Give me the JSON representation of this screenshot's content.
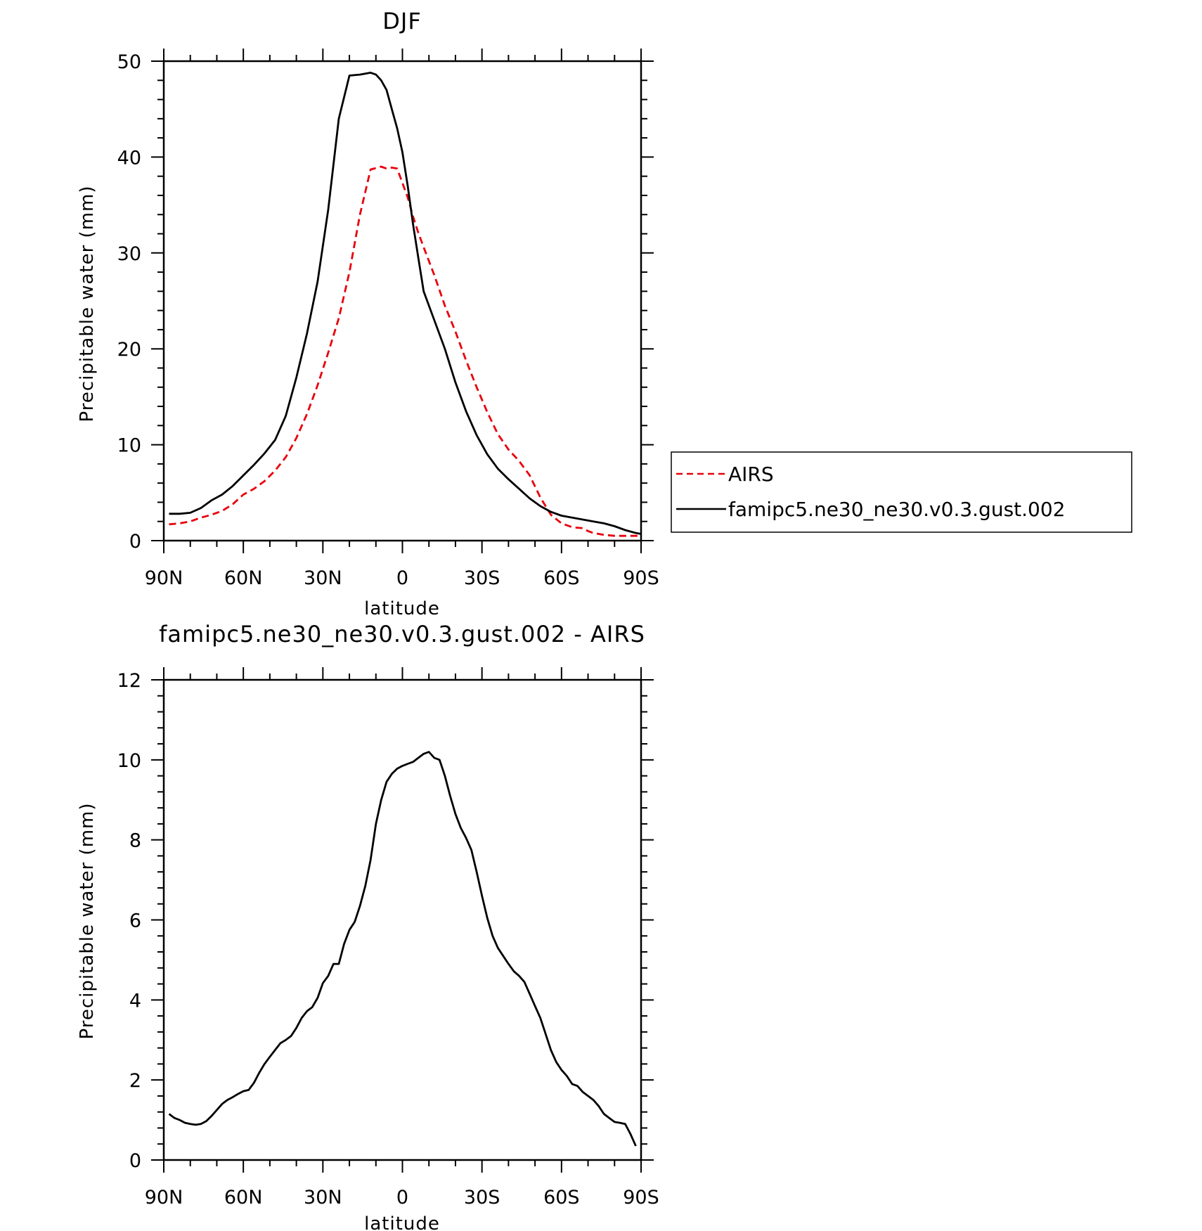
{
  "chart_data": [
    {
      "type": "line",
      "title": "DJF",
      "xlabel": "latitude",
      "ylabel": "Precipitable water (mm)",
      "xlim": [
        90,
        -90
      ],
      "ylim": [
        0,
        50
      ],
      "y_major_ticks": [
        0,
        10,
        20,
        30,
        40,
        50
      ],
      "x_ticks": [
        90,
        60,
        30,
        0,
        -30,
        -60,
        -90
      ],
      "x_tick_labels": [
        "90N",
        "60N",
        "30N",
        "0",
        "30S",
        "60S",
        "90S"
      ],
      "grid": false,
      "legend": {
        "position": "right",
        "entries": [
          "AIRS",
          "famipc5.ne30_ne30.v0.3.gust.002"
        ]
      },
      "series": [
        {
          "name": "AIRS",
          "color": "#e8000b",
          "style": "dashed",
          "x": [
            88,
            84,
            80,
            76,
            72,
            68,
            64,
            60,
            56,
            52,
            48,
            44,
            40,
            36,
            32,
            28,
            24,
            20,
            16,
            12,
            8,
            6,
            4,
            2,
            0,
            -2,
            -4,
            -6,
            -8,
            -12,
            -16,
            -20,
            -24,
            -28,
            -32,
            -36,
            -40,
            -44,
            -48,
            -52,
            -56,
            -60,
            -64,
            -68,
            -70,
            -72,
            -76,
            -80,
            -84,
            -88,
            -90
          ],
          "y": [
            1.7,
            1.8,
            2.0,
            2.4,
            2.7,
            3.1,
            3.8,
            4.8,
            5.4,
            6.2,
            7.3,
            8.7,
            10.7,
            13.2,
            16.2,
            19.6,
            23.2,
            28.0,
            34.0,
            38.7,
            39.0,
            38.8,
            38.9,
            38.8,
            37.3,
            35.8,
            33.8,
            32.1,
            30.6,
            27.7,
            24.5,
            21.8,
            18.8,
            16.0,
            13.4,
            11.1,
            9.5,
            8.3,
            6.8,
            4.5,
            2.7,
            1.8,
            1.4,
            1.3,
            1.0,
            0.8,
            0.6,
            0.5,
            0.5,
            0.5,
            0.5
          ]
        },
        {
          "name": "famipc5.ne30_ne30.v0.3.gust.002",
          "color": "#000000",
          "style": "solid",
          "x": [
            88,
            84,
            80,
            76,
            72,
            68,
            64,
            60,
            56,
            52,
            48,
            44,
            40,
            36,
            32,
            28,
            24,
            20,
            16,
            12,
            10,
            8,
            6,
            4,
            2,
            0,
            -2,
            -4,
            -6,
            -8,
            -12,
            -16,
            -20,
            -24,
            -28,
            -32,
            -36,
            -40,
            -44,
            -48,
            -52,
            -56,
            -60,
            -64,
            -68,
            -72,
            -76,
            -80,
            -84,
            -88,
            -90
          ],
          "y": [
            2.8,
            2.8,
            2.9,
            3.4,
            4.2,
            4.8,
            5.7,
            6.8,
            7.9,
            9.1,
            10.5,
            13.0,
            17.0,
            21.6,
            27.0,
            34.5,
            44.0,
            48.5,
            48.6,
            48.8,
            48.6,
            48.0,
            47.0,
            45.0,
            43.0,
            40.5,
            37.0,
            33.0,
            29.5,
            26.0,
            23.0,
            20.0,
            16.5,
            13.5,
            11.0,
            9.0,
            7.5,
            6.4,
            5.4,
            4.4,
            3.6,
            3.0,
            2.6,
            2.4,
            2.2,
            2.0,
            1.8,
            1.5,
            1.1,
            0.8,
            0.7
          ]
        }
      ]
    },
    {
      "type": "line",
      "title": "famipc5.ne30_ne30.v0.3.gust.002 - AIRS",
      "xlabel": "latitude",
      "ylabel": "Precipitable water (mm)",
      "xlim": [
        90,
        -90
      ],
      "ylim": [
        0,
        12
      ],
      "y_major_ticks": [
        0,
        2,
        4,
        6,
        8,
        10,
        12
      ],
      "x_ticks": [
        90,
        60,
        30,
        0,
        -30,
        -60,
        -90
      ],
      "x_tick_labels": [
        "90N",
        "60N",
        "30N",
        "0",
        "30S",
        "60S",
        "90S"
      ],
      "grid": false,
      "series": [
        {
          "color": "#000000",
          "style": "solid",
          "x": [
            88,
            86,
            84,
            82,
            80,
            78,
            76,
            74,
            72,
            70,
            68,
            66,
            64,
            62,
            60,
            58,
            56,
            54,
            52,
            50,
            48,
            46,
            44,
            42,
            40,
            38,
            36,
            34,
            32,
            30,
            28,
            26,
            24,
            22,
            20,
            18,
            16,
            14,
            12,
            10,
            8,
            6,
            4,
            2,
            0,
            -2,
            -4,
            -6,
            -8,
            -10,
            -12,
            -14,
            -16,
            -18,
            -20,
            -22,
            -24,
            -26,
            -28,
            -30,
            -32,
            -34,
            -36,
            -38,
            -40,
            -42,
            -44,
            -46,
            -48,
            -50,
            -52,
            -54,
            -56,
            -58,
            -60,
            -62,
            -64,
            -66,
            -68,
            -70,
            -72,
            -74,
            -76,
            -78,
            -80,
            -82,
            -84,
            -86,
            -88
          ],
          "y": [
            1.15,
            1.05,
            1.0,
            0.93,
            0.9,
            0.88,
            0.9,
            0.97,
            1.1,
            1.25,
            1.4,
            1.5,
            1.57,
            1.65,
            1.72,
            1.75,
            1.93,
            2.18,
            2.4,
            2.58,
            2.75,
            2.92,
            3.0,
            3.1,
            3.3,
            3.55,
            3.72,
            3.82,
            4.05,
            4.42,
            4.6,
            4.9,
            4.9,
            5.4,
            5.75,
            5.95,
            6.35,
            6.85,
            7.5,
            8.4,
            9.0,
            9.45,
            9.65,
            9.78,
            9.85,
            9.9,
            9.95,
            10.05,
            10.15,
            10.2,
            10.05,
            10.0,
            9.6,
            9.1,
            8.65,
            8.3,
            8.05,
            7.75,
            7.2,
            6.6,
            6.05,
            5.6,
            5.3,
            5.1,
            4.9,
            4.72,
            4.6,
            4.45,
            4.15,
            3.85,
            3.55,
            3.15,
            2.75,
            2.45,
            2.25,
            2.1,
            1.9,
            1.85,
            1.7,
            1.6,
            1.5,
            1.35,
            1.15,
            1.05,
            0.95,
            0.93,
            0.9,
            0.65,
            0.35
          ]
        }
      ]
    }
  ]
}
